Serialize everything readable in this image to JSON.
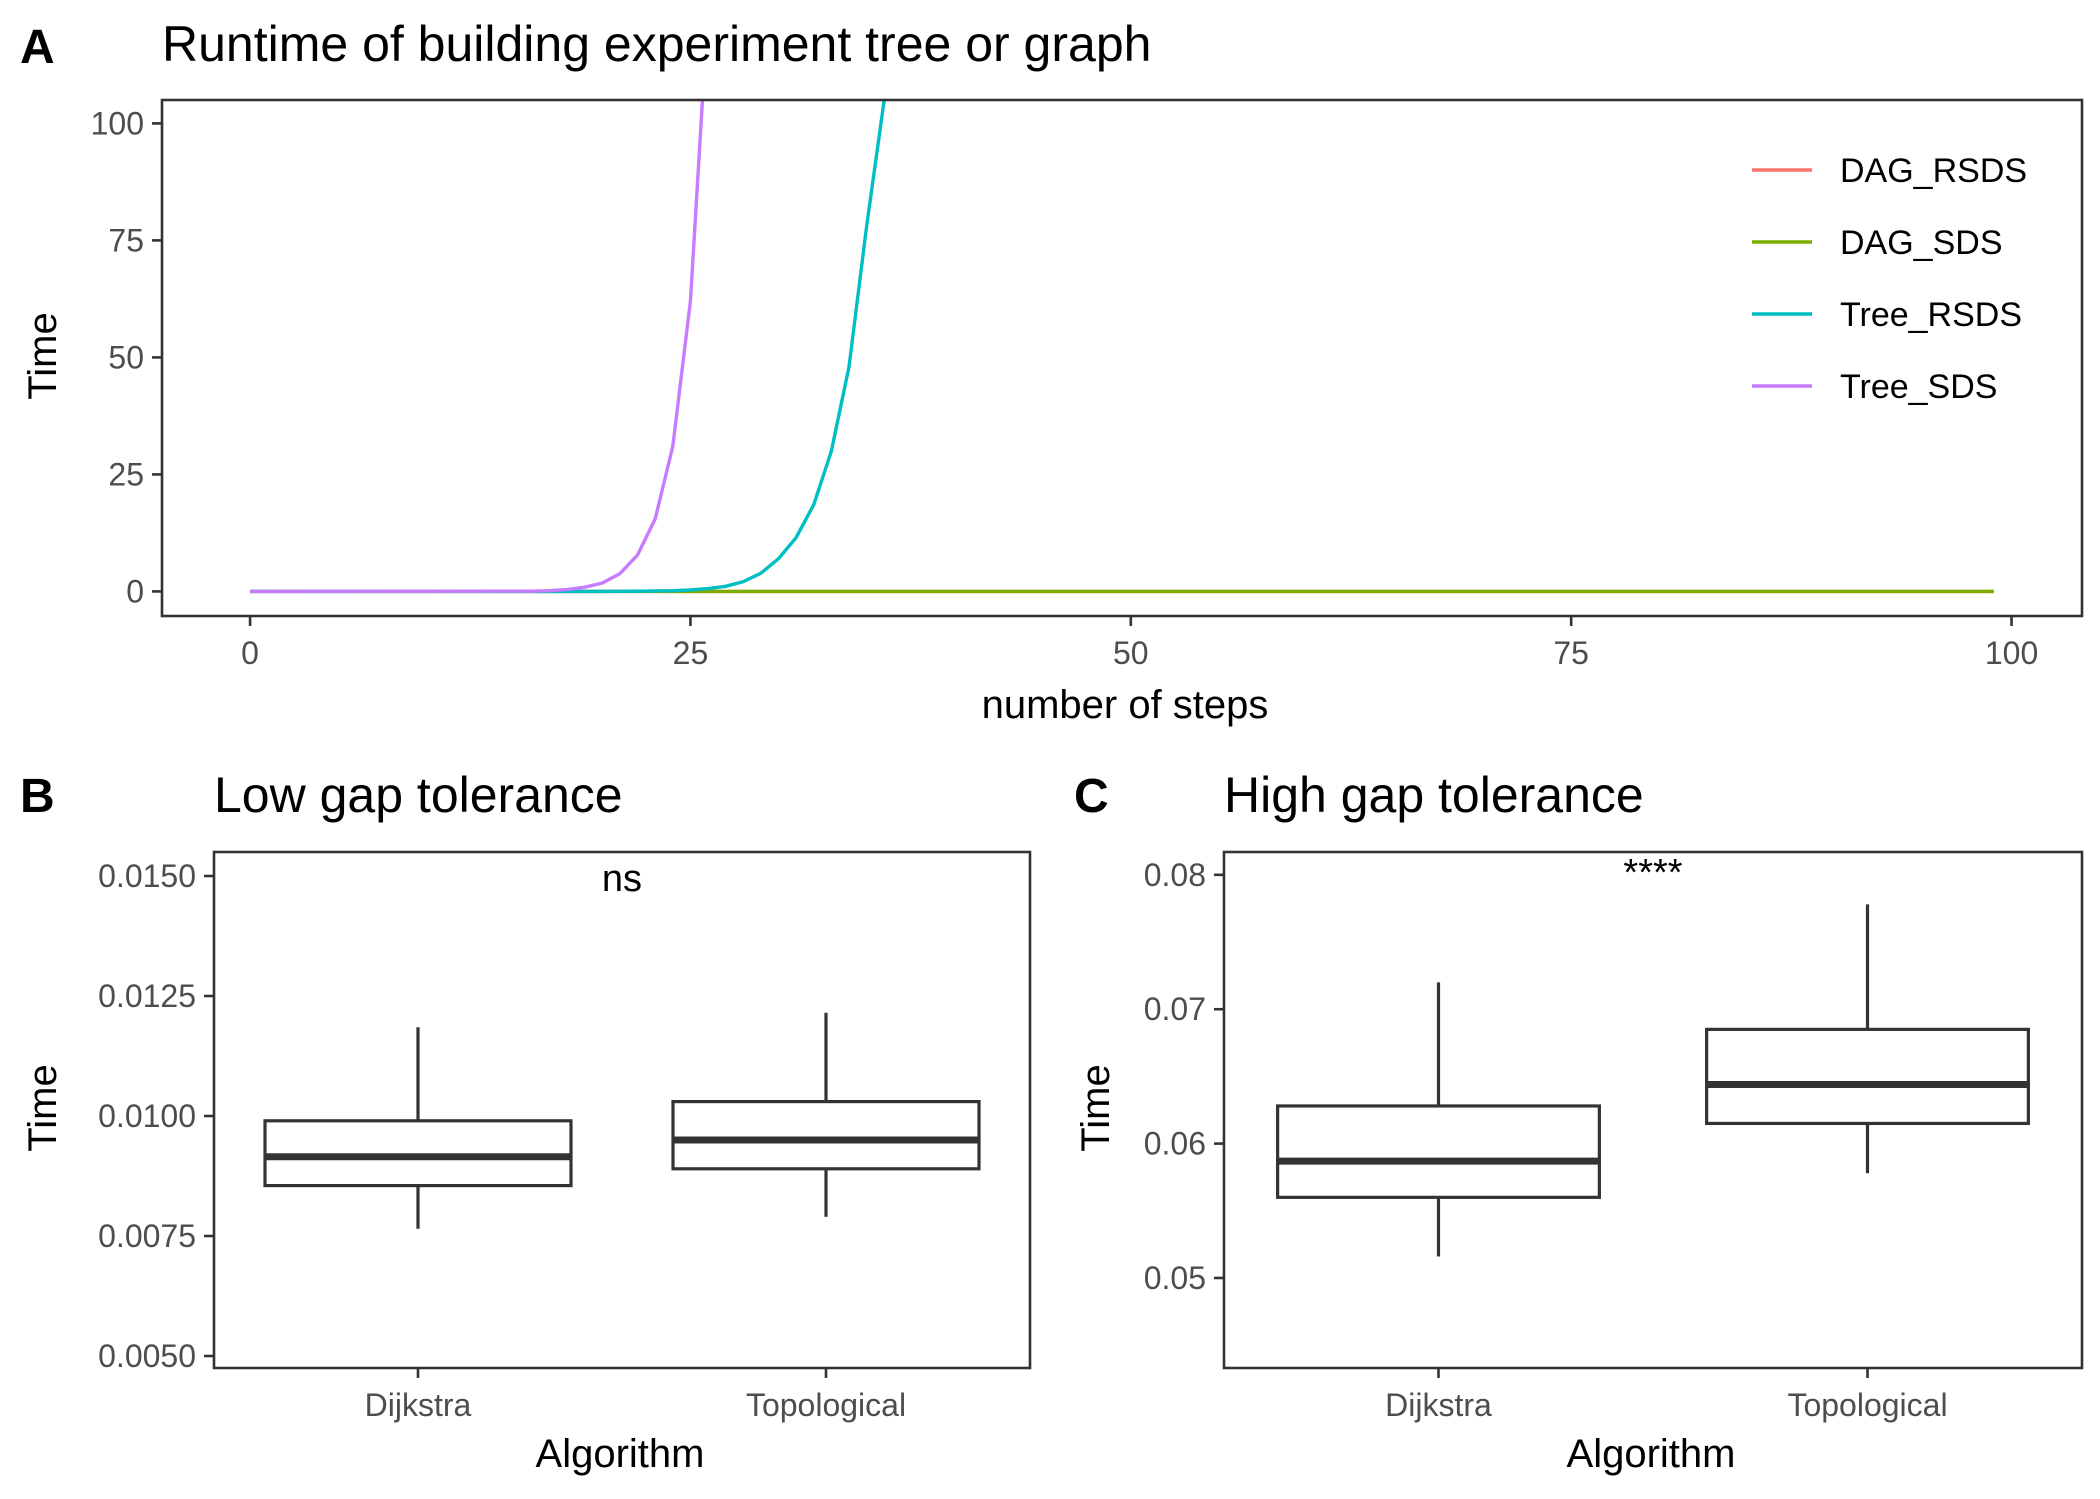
{
  "chart_data": [
    {
      "panel": "A",
      "type": "line",
      "title": "Runtime of building experiment tree or graph",
      "xlabel": "number of steps",
      "ylabel": "Time",
      "xlim": [
        -5,
        104
      ],
      "ylim": [
        -5.25,
        105
      ],
      "xticks": [
        0,
        25,
        50,
        75,
        100
      ],
      "yticks": [
        0,
        25,
        50,
        75,
        100
      ],
      "grid": false,
      "legend_position": "top-right",
      "series": [
        {
          "name": "DAG_RSDS",
          "color": "#F8766D",
          "x": [
            0,
            99
          ],
          "y": [
            0,
            0
          ]
        },
        {
          "name": "DAG_SDS",
          "color": "#7CAE00",
          "x": [
            0,
            99
          ],
          "y": [
            0,
            0
          ]
        },
        {
          "name": "Tree_RSDS",
          "color": "#00BFC4",
          "x": [
            0,
            20,
            22,
            24,
            25,
            26,
            27,
            28,
            29,
            30,
            31,
            32,
            33,
            34,
            35,
            36,
            37
          ],
          "y": [
            0,
            0.01,
            0.04,
            0.15,
            0.3,
            0.6,
            1.1,
            2.1,
            3.9,
            7,
            11.5,
            18.5,
            30,
            48,
            78,
            105,
            115
          ]
        },
        {
          "name": "Tree_SDS",
          "color": "#C77CFF",
          "x": [
            0,
            16,
            17,
            18,
            19,
            20,
            21,
            22,
            23,
            24,
            25,
            26
          ],
          "y": [
            0,
            0.05,
            0.15,
            0.4,
            0.9,
            1.8,
            3.8,
            7.8,
            15.5,
            31,
            62,
            125
          ]
        }
      ]
    },
    {
      "panel": "B",
      "type": "box",
      "title": "Low gap tolerance",
      "xlabel": "Algorithm",
      "ylabel": "Time",
      "categories": [
        "Dijkstra",
        "Topological"
      ],
      "ylim": [
        0.00475,
        0.0155
      ],
      "yticks": [
        0.005,
        0.0075,
        0.01,
        0.0125,
        0.015
      ],
      "ytick_labels": [
        "0.0050",
        "0.0075",
        "0.0100",
        "0.0125",
        "0.0150"
      ],
      "annotation": "ns",
      "boxes": [
        {
          "category": "Dijkstra",
          "min": 0.00765,
          "q1": 0.00855,
          "median": 0.00915,
          "q3": 0.0099,
          "max": 0.01185
        },
        {
          "category": "Topological",
          "min": 0.0079,
          "q1": 0.0089,
          "median": 0.0095,
          "q3": 0.0103,
          "max": 0.01215
        }
      ]
    },
    {
      "panel": "C",
      "type": "box",
      "title": "High gap tolerance",
      "xlabel": "Algorithm",
      "ylabel": "Time",
      "categories": [
        "Dijkstra",
        "Topological"
      ],
      "ylim": [
        0.0433,
        0.0817
      ],
      "yticks": [
        0.05,
        0.06,
        0.07,
        0.08
      ],
      "ytick_labels": [
        "0.05",
        "0.06",
        "0.07",
        "0.08"
      ],
      "annotation": "****",
      "boxes": [
        {
          "category": "Dijkstra",
          "min": 0.0516,
          "q1": 0.056,
          "median": 0.0587,
          "q3": 0.0628,
          "max": 0.072
        },
        {
          "category": "Topological",
          "min": 0.0578,
          "q1": 0.0615,
          "median": 0.0644,
          "q3": 0.0685,
          "max": 0.0778
        }
      ]
    }
  ]
}
